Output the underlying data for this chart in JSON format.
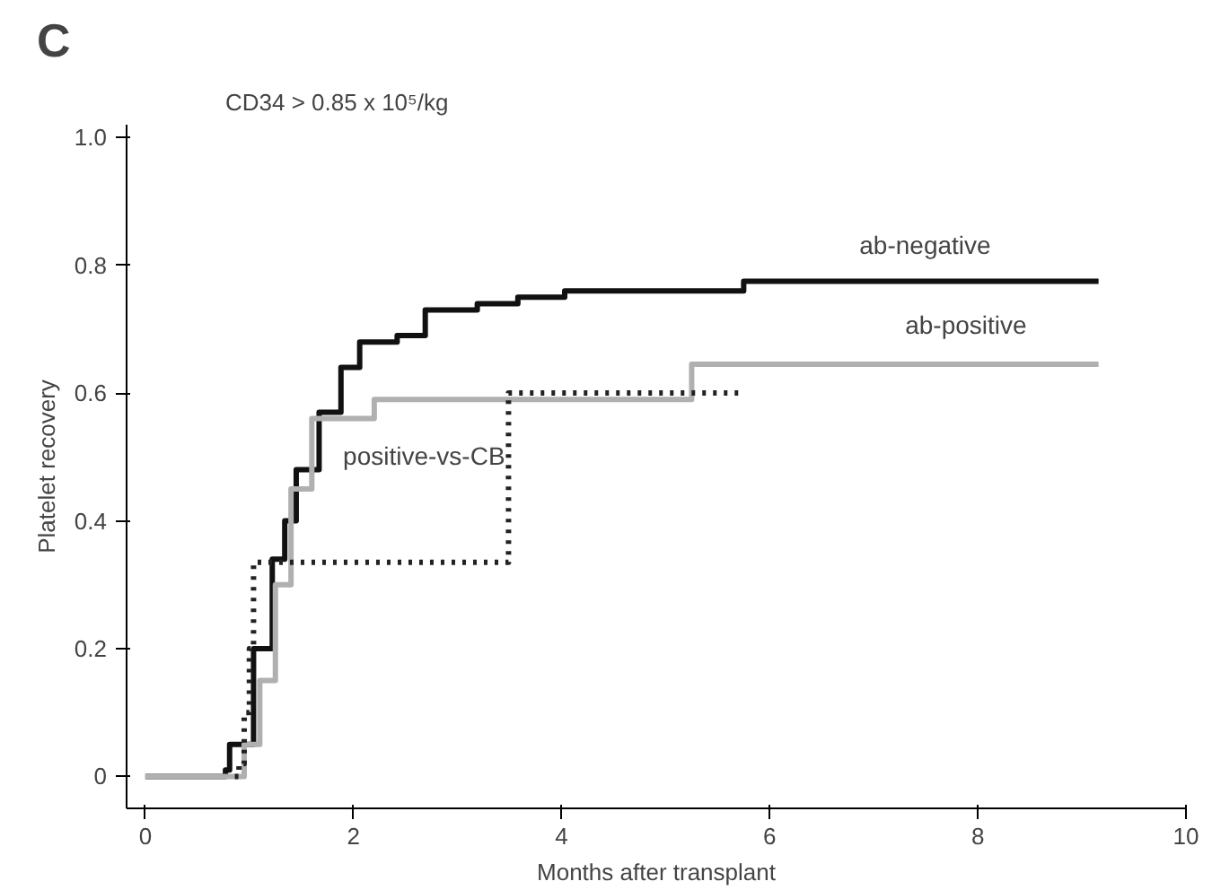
{
  "chart_data": {
    "type": "step",
    "title": "CD34 > 0.85 x 10⁵/kg",
    "xlabel": "Months after transplant",
    "ylabel": "Platelet recovery",
    "annotations": [
      "C"
    ],
    "xlim": [
      -0.18,
      10
    ],
    "ylim": [
      -0.05,
      1.02
    ],
    "xticks": [
      0,
      2,
      4,
      6,
      8,
      10
    ],
    "yticks": [
      0,
      0.2,
      0.4,
      0.6,
      0.8,
      {
        "value": 1.0,
        "label": "1.0"
      }
    ],
    "grid": false,
    "series": [
      {
        "name": "ab-negative",
        "color": "#111111",
        "line_style": "solid",
        "x": [
          0,
          0.77,
          0.81,
          1.04,
          1.22,
          1.34,
          1.45,
          1.67,
          1.88,
          2.06,
          2.42,
          2.69,
          3.19,
          3.58,
          4.03,
          5.75,
          9.16
        ],
        "values": [
          0,
          0.01,
          0.05,
          0.2,
          0.34,
          0.4,
          0.48,
          0.57,
          0.64,
          0.68,
          0.69,
          0.73,
          0.74,
          0.75,
          0.76,
          0.775,
          0.775
        ]
      },
      {
        "name": "ab-positive",
        "color": "#b0b0b0",
        "line_style": "solid",
        "x": [
          0,
          0.86,
          0.95,
          1.1,
          1.25,
          1.4,
          1.6,
          2.2,
          5.25,
          9.16
        ],
        "values": [
          0,
          0,
          0.05,
          0.15,
          0.3,
          0.45,
          0.56,
          0.59,
          0.645,
          0.645
        ]
      },
      {
        "name": "positive-vs-CB",
        "color": "#222222",
        "line_style": "dotted",
        "x": [
          0.86,
          0.9,
          0.95,
          1.0,
          1.04,
          3.49,
          5.7
        ],
        "values": [
          0,
          0.02,
          0.1,
          0.2,
          0.335,
          0.6,
          0.6
        ]
      }
    ]
  }
}
